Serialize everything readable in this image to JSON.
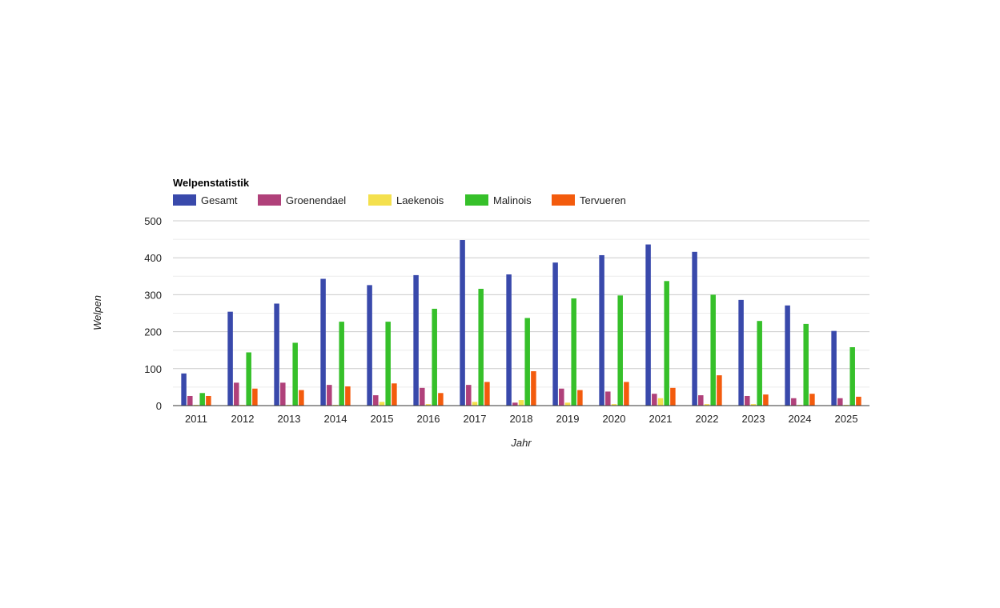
{
  "chart_data": {
    "type": "bar",
    "title": "Welpenstatistik",
    "xlabel": "Jahr",
    "ylabel": "Welpen",
    "ylim": [
      0,
      500
    ],
    "yticks": [
      0,
      100,
      200,
      300,
      400,
      500
    ],
    "legend_position": "top-left",
    "categories": [
      "2011",
      "2012",
      "2013",
      "2014",
      "2015",
      "2016",
      "2017",
      "2018",
      "2019",
      "2020",
      "2021",
      "2022",
      "2023",
      "2024",
      "2025"
    ],
    "series": [
      {
        "name": "Gesamt",
        "color": "#3949ab",
        "values": [
          87,
          254,
          276,
          343,
          326,
          353,
          448,
          355,
          387,
          407,
          436,
          416,
          286,
          271,
          202
        ]
      },
      {
        "name": "Groenendael",
        "color": "#b0417a",
        "values": [
          26,
          62,
          62,
          56,
          28,
          48,
          56,
          8,
          46,
          38,
          32,
          28,
          26,
          20,
          20
        ]
      },
      {
        "name": "Laekenois",
        "color": "#f4e04d",
        "values": [
          2,
          2,
          2,
          2,
          10,
          4,
          10,
          15,
          8,
          4,
          20,
          4,
          4,
          2,
          2
        ]
      },
      {
        "name": "Malinois",
        "color": "#36c02a",
        "values": [
          34,
          144,
          170,
          227,
          227,
          262,
          316,
          237,
          290,
          298,
          337,
          300,
          229,
          221,
          158
        ]
      },
      {
        "name": "Tervueren",
        "color": "#f35b0d",
        "values": [
          26,
          46,
          42,
          52,
          60,
          34,
          64,
          93,
          42,
          64,
          48,
          82,
          30,
          32,
          24
        ]
      }
    ]
  }
}
